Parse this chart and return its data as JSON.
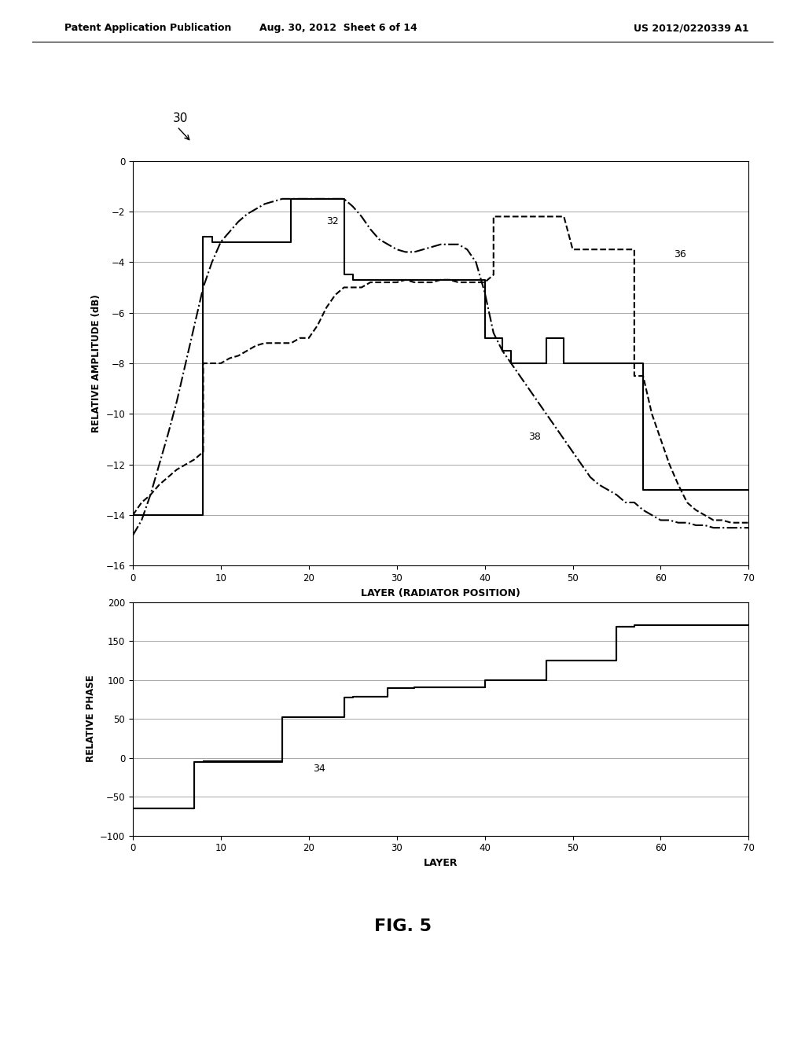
{
  "fig_title": "FIG. 5",
  "header_left": "Patent Application Publication",
  "header_center": "Aug. 30, 2012  Sheet 6 of 14",
  "header_right": "US 2012/0220339 A1",
  "label_30": "30",
  "label_32": "32",
  "label_36": "36",
  "label_38": "38",
  "label_34": "34",
  "amp_xlabel": "LAYER (RADIATOR POSITION)",
  "amp_ylabel": "RELATIVE AMPLITUDE (dB)",
  "amp_xlim": [
    0,
    70
  ],
  "amp_ylim": [
    -16,
    0
  ],
  "amp_yticks": [
    0,
    -2,
    -4,
    -6,
    -8,
    -10,
    -12,
    -14,
    -16
  ],
  "amp_xticks": [
    0,
    10,
    20,
    30,
    40,
    50,
    60,
    70
  ],
  "phase_xlabel": "LAYER",
  "phase_ylabel": "RELATIVE PHASE",
  "phase_xlim": [
    0,
    70
  ],
  "phase_ylim": [
    -100,
    200
  ],
  "phase_yticks": [
    -100,
    -50,
    0,
    50,
    100,
    150,
    200
  ],
  "phase_xticks": [
    0,
    10,
    20,
    30,
    40,
    50,
    60,
    70
  ],
  "solid_x": [
    0,
    8,
    8,
    9,
    9,
    18,
    18,
    24,
    24,
    25,
    25,
    40,
    40,
    42,
    42,
    43,
    43,
    47,
    47,
    49,
    49,
    50,
    50,
    57,
    57,
    58,
    58,
    70
  ],
  "solid_y": [
    -14,
    -14,
    -3.0,
    -3.0,
    -3.2,
    -3.2,
    -1.5,
    -1.5,
    -4.5,
    -4.5,
    -4.7,
    -4.7,
    -7.0,
    -7.0,
    -7.5,
    -7.5,
    -8.0,
    -8.0,
    -7.0,
    -7.0,
    -8.0,
    -8.0,
    -8.0,
    -8.0,
    -8.0,
    -8.0,
    -13.0,
    -13.0
  ],
  "dashdot_x": [
    0,
    1,
    2,
    3,
    4,
    5,
    6,
    7,
    8,
    9,
    10,
    11,
    12,
    13,
    14,
    15,
    16,
    17,
    18,
    19,
    20,
    21,
    22,
    23,
    24,
    25,
    26,
    27,
    28,
    29,
    30,
    31,
    32,
    33,
    34,
    35,
    36,
    37,
    38,
    39,
    40,
    41,
    42,
    43,
    44,
    45,
    46,
    47,
    48,
    49,
    50,
    51,
    52,
    53,
    54,
    55,
    56,
    57,
    58,
    59,
    60,
    61,
    62,
    63,
    64,
    65,
    66,
    67,
    68,
    69,
    70
  ],
  "dashdot_y": [
    -14.8,
    -14.2,
    -13.2,
    -12.0,
    -10.8,
    -9.5,
    -8.0,
    -6.5,
    -5.0,
    -4.0,
    -3.2,
    -2.8,
    -2.4,
    -2.1,
    -1.9,
    -1.7,
    -1.6,
    -1.5,
    -1.5,
    -1.5,
    -1.5,
    -1.5,
    -1.5,
    -1.5,
    -1.5,
    -1.8,
    -2.2,
    -2.7,
    -3.1,
    -3.3,
    -3.5,
    -3.6,
    -3.6,
    -3.5,
    -3.4,
    -3.3,
    -3.3,
    -3.3,
    -3.5,
    -4.0,
    -5.2,
    -6.8,
    -7.5,
    -8.0,
    -8.5,
    -9.0,
    -9.5,
    -10.0,
    -10.5,
    -11.0,
    -11.5,
    -12.0,
    -12.5,
    -12.8,
    -13.0,
    -13.2,
    -13.5,
    -13.5,
    -13.8,
    -14.0,
    -14.2,
    -14.2,
    -14.3,
    -14.3,
    -14.4,
    -14.4,
    -14.5,
    -14.5,
    -14.5,
    -14.5,
    -14.5
  ],
  "dashed_x": [
    0,
    1,
    2,
    3,
    4,
    5,
    6,
    7,
    8,
    8,
    9,
    10,
    11,
    12,
    13,
    14,
    15,
    16,
    17,
    18,
    19,
    20,
    21,
    22,
    23,
    24,
    25,
    26,
    27,
    28,
    29,
    30,
    31,
    32,
    33,
    34,
    35,
    36,
    37,
    38,
    39,
    40,
    41,
    41,
    42,
    43,
    44,
    45,
    46,
    47,
    48,
    49,
    50,
    51,
    52,
    53,
    54,
    55,
    56,
    57,
    57,
    58,
    59,
    60,
    61,
    62,
    63,
    64,
    65,
    66,
    67,
    68,
    69,
    70
  ],
  "dashed_y": [
    -14,
    -13.5,
    -13.2,
    -12.8,
    -12.5,
    -12.2,
    -12.0,
    -11.8,
    -11.5,
    -8.0,
    -8.0,
    -8.0,
    -7.8,
    -7.7,
    -7.5,
    -7.3,
    -7.2,
    -7.2,
    -7.2,
    -7.2,
    -7.0,
    -7.0,
    -6.5,
    -5.8,
    -5.3,
    -5.0,
    -5.0,
    -5.0,
    -4.8,
    -4.8,
    -4.8,
    -4.8,
    -4.7,
    -4.8,
    -4.8,
    -4.8,
    -4.7,
    -4.7,
    -4.8,
    -4.8,
    -4.8,
    -4.8,
    -4.5,
    -2.2,
    -2.2,
    -2.2,
    -2.2,
    -2.2,
    -2.2,
    -2.2,
    -2.2,
    -2.2,
    -3.5,
    -3.5,
    -3.5,
    -3.5,
    -3.5,
    -3.5,
    -3.5,
    -3.5,
    -8.5,
    -8.5,
    -10.0,
    -11.0,
    -12.0,
    -12.8,
    -13.5,
    -13.8,
    -14.0,
    -14.2,
    -14.2,
    -14.3,
    -14.3,
    -14.3
  ],
  "phase1_x": [
    0,
    7,
    7,
    8,
    8,
    17,
    17,
    18,
    18,
    24,
    24,
    25,
    25,
    29,
    29,
    32,
    32,
    36,
    36,
    40,
    40,
    43,
    43,
    47,
    47,
    48,
    48,
    55,
    55,
    57,
    57,
    65,
    65,
    70
  ],
  "phase1_y": [
    -65,
    -65,
    -5,
    -5,
    -5,
    -5,
    52,
    52,
    52,
    52,
    77,
    77,
    78,
    78,
    89,
    89,
    90,
    90,
    90,
    90,
    100,
    100,
    100,
    100,
    125,
    125,
    125,
    125,
    168,
    168,
    170,
    170,
    170,
    170
  ],
  "phase2_x": [
    0,
    7,
    7,
    8,
    8,
    17,
    17,
    18,
    18,
    24,
    24,
    25,
    25,
    29,
    29,
    32,
    32,
    36,
    36,
    40,
    40,
    43,
    43,
    47,
    47,
    48,
    48,
    55,
    55,
    57,
    57,
    65,
    65,
    70
  ],
  "phase2_y": [
    -65,
    -65,
    -5,
    -5,
    -3,
    -3,
    53,
    53,
    53,
    53,
    78,
    78,
    79,
    79,
    90,
    90,
    91,
    91,
    91,
    91,
    101,
    101,
    101,
    101,
    126,
    126,
    126,
    126,
    169,
    169,
    171,
    171,
    171,
    171
  ],
  "background_color": "#ffffff",
  "line_color": "#000000",
  "grid_color": "#999999"
}
